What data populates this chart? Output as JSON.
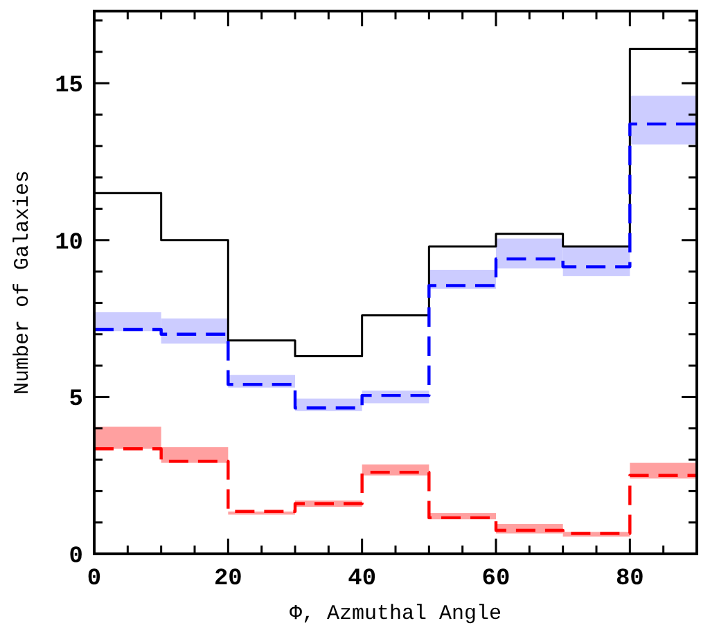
{
  "chart_data": {
    "type": "histogram",
    "xlabel": "Φ, Azmuthal Angle",
    "ylabel": "Number of Galaxies",
    "bins": [
      0,
      10,
      20,
      30,
      40,
      50,
      60,
      70,
      80,
      90
    ],
    "series": [
      {
        "type": "bar",
        "color": "#ccccff",
        "x": [
          5,
          15,
          25,
          35,
          45,
          55,
          65,
          75,
          85
        ],
        "base": [
          7.1,
          6.7,
          5.3,
          4.55,
          4.8,
          8.45,
          9.1,
          8.85,
          13.05
        ],
        "values": [
          0.6,
          0.8,
          0.4,
          0.4,
          0.4,
          0.6,
          0.95,
          0.95,
          1.55
        ]
      },
      {
        "type": "bar",
        "color": "#ffa0a0",
        "x": [
          5,
          15,
          25,
          35,
          45,
          55,
          65,
          75,
          85
        ],
        "base": [
          3.35,
          2.9,
          1.25,
          1.5,
          2.5,
          1.1,
          0.65,
          0.55,
          2.4
        ],
        "values": [
          0.7,
          0.5,
          0.1,
          0.2,
          0.35,
          0.2,
          0.3,
          0.15,
          0.5
        ]
      },
      {
        "color": "#000000",
        "line_style": "solid",
        "values": [
          11.5,
          10.0,
          6.8,
          6.3,
          7.6,
          9.8,
          10.2,
          9.8,
          16.1
        ]
      },
      {
        "color": "#0000ff",
        "line_style": "dashed",
        "values": [
          7.15,
          7.0,
          5.4,
          4.65,
          5.05,
          8.55,
          9.4,
          9.15,
          13.7
        ]
      },
      {
        "color": "#ff0000",
        "line_style": "dashed",
        "values": [
          3.35,
          2.95,
          1.35,
          1.6,
          2.6,
          1.15,
          0.75,
          0.65,
          2.5
        ]
      }
    ],
    "xlim": [
      0,
      90
    ],
    "ylim": [
      0,
      17.3
    ],
    "xticks": [
      0,
      {
        "value": 5,
        "label": null
      },
      {
        "value": 10,
        "label": null
      },
      {
        "value": 15,
        "label": null
      },
      20,
      {
        "value": 25,
        "label": null
      },
      {
        "value": 30,
        "label": null
      },
      {
        "value": 35,
        "label": null
      },
      40,
      {
        "value": 45,
        "label": null
      },
      {
        "value": 50,
        "label": null
      },
      {
        "value": 55,
        "label": null
      },
      60,
      {
        "value": 65,
        "label": null
      },
      {
        "value": 70,
        "label": null
      },
      {
        "value": 75,
        "label": null
      },
      80,
      {
        "value": 85,
        "label": null
      }
    ],
    "yticks": [
      0,
      {
        "value": 1,
        "label": null
      },
      {
        "value": 2,
        "label": null
      },
      {
        "value": 3,
        "label": null
      },
      {
        "value": 4,
        "label": null
      },
      5,
      {
        "value": 6,
        "label": null
      },
      {
        "value": 7,
        "label": null
      },
      {
        "value": 8,
        "label": null
      },
      {
        "value": 9,
        "label": null
      },
      10,
      {
        "value": 11,
        "label": null
      },
      {
        "value": 12,
        "label": null
      },
      {
        "value": 13,
        "label": null
      },
      {
        "value": 14,
        "label": null
      },
      15,
      {
        "value": 16,
        "label": null
      },
      {
        "value": 17,
        "label": null
      }
    ],
    "grid": false
  }
}
